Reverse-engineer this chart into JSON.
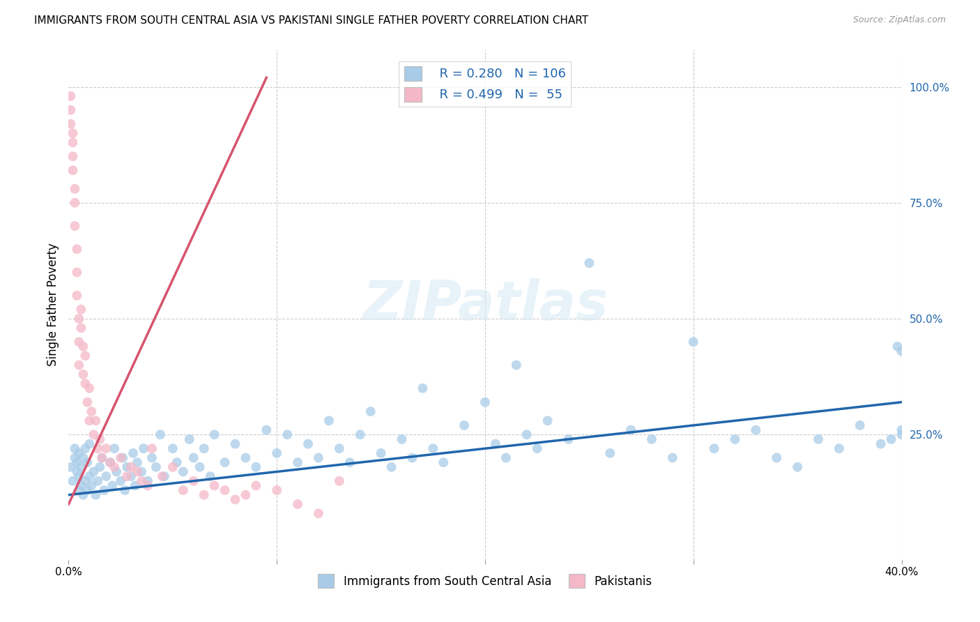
{
  "title": "IMMIGRANTS FROM SOUTH CENTRAL ASIA VS PAKISTANI SINGLE FATHER POVERTY CORRELATION CHART",
  "source": "Source: ZipAtlas.com",
  "legend_label1": "Immigrants from South Central Asia",
  "legend_label2": "Pakistanis",
  "blue_color": "#a8cce8",
  "pink_color": "#f4b8c8",
  "blue_line_color": "#2166ac",
  "pink_line_color": "#d6546e",
  "xlim": [
    0.0,
    0.4
  ],
  "ylim": [
    -0.02,
    1.08
  ],
  "watermark_text": "ZIPatlas",
  "title_fontsize": 11,
  "source_fontsize": 9,
  "ylabel": "Single Father Poverty",
  "blue_line_x0": 0.0,
  "blue_line_y0": 0.12,
  "blue_line_x1": 0.4,
  "blue_line_y1": 0.32,
  "pink_line_x0": 0.0,
  "pink_line_y0": 0.1,
  "pink_line_x1": 0.095,
  "pink_line_y1": 1.02,
  "scatter_blue_x": [
    0.001,
    0.002,
    0.003,
    0.003,
    0.004,
    0.004,
    0.005,
    0.005,
    0.005,
    0.006,
    0.006,
    0.007,
    0.007,
    0.008,
    0.008,
    0.009,
    0.009,
    0.01,
    0.01,
    0.011,
    0.012,
    0.013,
    0.014,
    0.015,
    0.016,
    0.017,
    0.018,
    0.02,
    0.021,
    0.022,
    0.023,
    0.025,
    0.026,
    0.027,
    0.028,
    0.03,
    0.031,
    0.032,
    0.033,
    0.035,
    0.036,
    0.038,
    0.04,
    0.042,
    0.044,
    0.046,
    0.05,
    0.052,
    0.055,
    0.058,
    0.06,
    0.063,
    0.065,
    0.068,
    0.07,
    0.075,
    0.08,
    0.085,
    0.09,
    0.095,
    0.1,
    0.105,
    0.11,
    0.115,
    0.12,
    0.125,
    0.13,
    0.135,
    0.14,
    0.145,
    0.15,
    0.155,
    0.16,
    0.165,
    0.17,
    0.175,
    0.18,
    0.19,
    0.2,
    0.205,
    0.21,
    0.215,
    0.22,
    0.225,
    0.23,
    0.24,
    0.25,
    0.26,
    0.27,
    0.28,
    0.29,
    0.3,
    0.31,
    0.32,
    0.33,
    0.34,
    0.35,
    0.36,
    0.37,
    0.38,
    0.39,
    0.395,
    0.398,
    0.4,
    0.4,
    0.4
  ],
  "scatter_blue_y": [
    0.18,
    0.15,
    0.2,
    0.22,
    0.17,
    0.19,
    0.13,
    0.16,
    0.21,
    0.14,
    0.18,
    0.12,
    0.2,
    0.15,
    0.22,
    0.13,
    0.19,
    0.16,
    0.23,
    0.14,
    0.17,
    0.12,
    0.15,
    0.18,
    0.2,
    0.13,
    0.16,
    0.19,
    0.14,
    0.22,
    0.17,
    0.15,
    0.2,
    0.13,
    0.18,
    0.16,
    0.21,
    0.14,
    0.19,
    0.17,
    0.22,
    0.15,
    0.2,
    0.18,
    0.25,
    0.16,
    0.22,
    0.19,
    0.17,
    0.24,
    0.2,
    0.18,
    0.22,
    0.16,
    0.25,
    0.19,
    0.23,
    0.2,
    0.18,
    0.26,
    0.21,
    0.25,
    0.19,
    0.23,
    0.2,
    0.28,
    0.22,
    0.19,
    0.25,
    0.3,
    0.21,
    0.18,
    0.24,
    0.2,
    0.35,
    0.22,
    0.19,
    0.27,
    0.32,
    0.23,
    0.2,
    0.4,
    0.25,
    0.22,
    0.28,
    0.24,
    0.62,
    0.21,
    0.26,
    0.24,
    0.2,
    0.45,
    0.22,
    0.24,
    0.26,
    0.2,
    0.18,
    0.24,
    0.22,
    0.27,
    0.23,
    0.24,
    0.44,
    0.25,
    0.26,
    0.43
  ],
  "scatter_pink_x": [
    0.001,
    0.001,
    0.001,
    0.002,
    0.002,
    0.002,
    0.002,
    0.003,
    0.003,
    0.003,
    0.004,
    0.004,
    0.004,
    0.005,
    0.005,
    0.005,
    0.006,
    0.006,
    0.007,
    0.007,
    0.008,
    0.008,
    0.009,
    0.01,
    0.01,
    0.011,
    0.012,
    0.013,
    0.014,
    0.015,
    0.016,
    0.018,
    0.02,
    0.022,
    0.025,
    0.028,
    0.03,
    0.033,
    0.035,
    0.038,
    0.04,
    0.045,
    0.05,
    0.055,
    0.06,
    0.065,
    0.07,
    0.075,
    0.08,
    0.085,
    0.09,
    0.1,
    0.11,
    0.12,
    0.13
  ],
  "scatter_pink_y": [
    0.98,
    0.95,
    0.92,
    0.9,
    0.88,
    0.85,
    0.82,
    0.78,
    0.75,
    0.7,
    0.65,
    0.6,
    0.55,
    0.5,
    0.45,
    0.4,
    0.52,
    0.48,
    0.44,
    0.38,
    0.42,
    0.36,
    0.32,
    0.35,
    0.28,
    0.3,
    0.25,
    0.28,
    0.22,
    0.24,
    0.2,
    0.22,
    0.19,
    0.18,
    0.2,
    0.16,
    0.18,
    0.17,
    0.15,
    0.14,
    0.22,
    0.16,
    0.18,
    0.13,
    0.15,
    0.12,
    0.14,
    0.13,
    0.11,
    0.12,
    0.14,
    0.13,
    0.1,
    0.08,
    0.15
  ]
}
